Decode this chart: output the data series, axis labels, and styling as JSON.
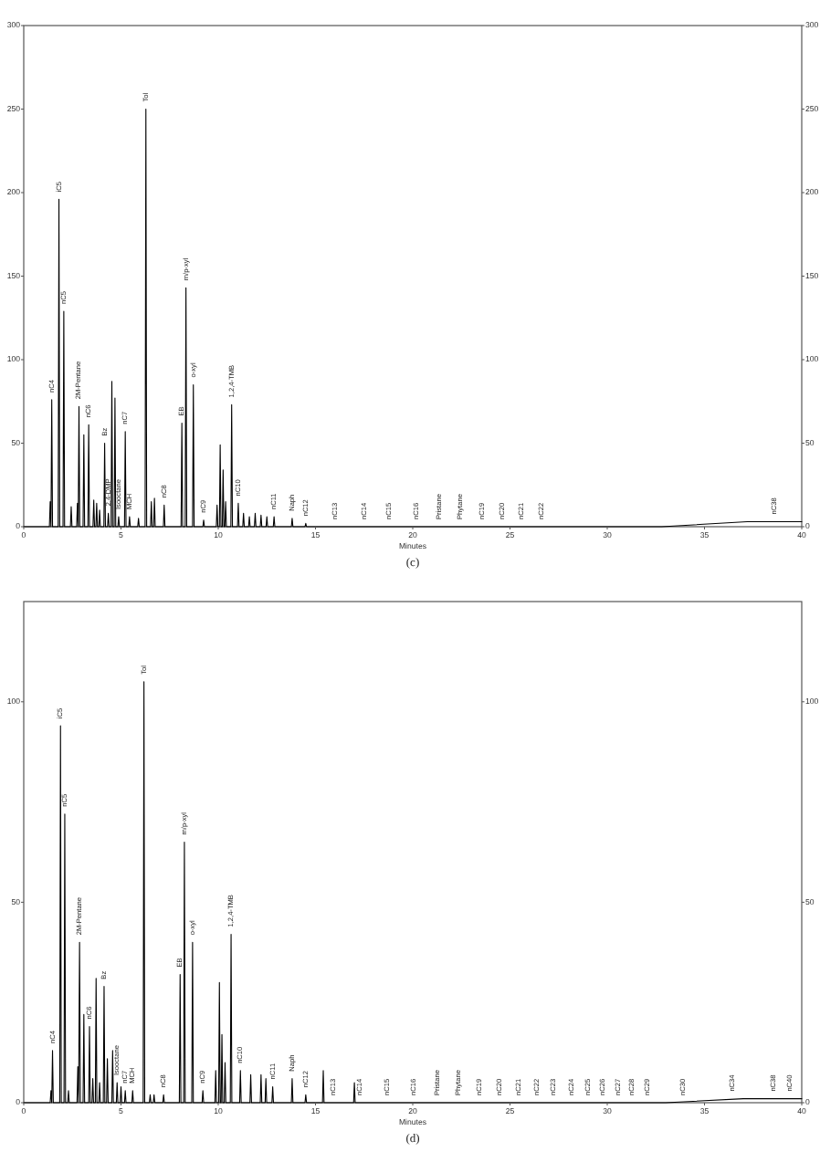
{
  "chart_data": [
    {
      "type": "line",
      "xlabel": "Minutes",
      "xlim": [
        0,
        40
      ],
      "xticks": [
        0,
        5,
        10,
        15,
        20,
        25,
        30,
        35,
        40
      ],
      "ylim": [
        0,
        300
      ],
      "yticks": [
        0,
        50,
        100,
        150,
        200,
        250,
        300
      ],
      "y2lim": [
        0,
        300
      ],
      "y2ticks": [
        0,
        50,
        100,
        150,
        200,
        250,
        300
      ],
      "series": [
        {
          "color": "#000000",
          "x": [
            0,
            1.32,
            1.36,
            1.4,
            1.44,
            1.48,
            1.77,
            1.81,
            1.85,
            2.02,
            2.06,
            2.1,
            2.4,
            2.44,
            2.48,
            2.72,
            2.76,
            2.8,
            2.84,
            2.88,
            3.05,
            3.09,
            3.13,
            3.3,
            3.34,
            3.38,
            3.56,
            3.6,
            3.64,
            3.71,
            3.75,
            3.79,
            3.86,
            3.9,
            3.94,
            4.12,
            4.16,
            4.2,
            4.31,
            4.35,
            4.39,
            4.49,
            4.53,
            4.57,
            4.65,
            4.69,
            4.73,
            4.84,
            4.88,
            4.92,
            5.18,
            5.22,
            5.26,
            5.4,
            5.44,
            5.48,
            5.86,
            5.9,
            5.94,
            6.24,
            6.28,
            6.32,
            6.52,
            6.56,
            6.6,
            6.68,
            6.72,
            6.76,
            7.18,
            7.22,
            7.26,
            8.09,
            8.13,
            8.17,
            8.3,
            8.34,
            8.38,
            8.68,
            8.72,
            8.76,
            9.21,
            9.25,
            9.29,
            9.9,
            9.94,
            9.98,
            10.06,
            10.1,
            10.14,
            10.21,
            10.25,
            10.29,
            10.34,
            10.38,
            10.42,
            10.65,
            10.69,
            10.73,
            10.99,
            11.03,
            11.07,
            11.26,
            11.3,
            11.34,
            11.56,
            11.6,
            11.64,
            11.86,
            11.9,
            11.94,
            12.16,
            12.2,
            12.24,
            12.46,
            12.5,
            12.54,
            12.83,
            12.87,
            12.91,
            13.76,
            13.8,
            13.84,
            14.46,
            14.5,
            14.54,
            32.8,
            37.2,
            40
          ],
          "values": [
            0,
            0,
            15,
            0,
            76,
            0,
            0,
            196,
            0,
            0,
            129,
            0,
            0,
            12,
            0,
            0,
            14,
            0,
            72,
            0,
            0,
            55,
            0,
            0,
            61,
            0,
            0,
            16,
            0,
            0,
            14,
            0,
            0,
            10,
            0,
            0,
            50,
            0,
            0,
            8,
            0,
            0,
            87,
            0,
            0,
            77,
            0,
            0,
            6,
            0,
            0,
            57,
            0,
            0,
            6,
            0,
            0,
            5,
            0,
            0,
            250,
            0,
            0,
            15,
            0,
            0,
            17,
            0,
            0,
            13,
            0,
            0,
            62,
            0,
            0,
            143,
            0,
            0,
            85,
            0,
            0,
            4,
            0,
            0,
            13,
            0,
            0,
            49,
            0,
            0,
            34,
            0,
            0,
            15,
            0,
            0,
            73,
            0,
            0,
            14,
            0,
            0,
            8,
            0,
            0,
            6,
            0,
            0,
            8,
            0,
            0,
            7,
            0,
            0,
            6,
            0,
            0,
            6,
            0,
            0,
            5,
            0,
            0,
            2,
            0,
            0,
            3,
            3
          ]
        }
      ],
      "annotations": [
        {
          "text": "nC4",
          "x": 1.44,
          "y": 76
        },
        {
          "text": "iC5",
          "x": 1.81,
          "y": 196
        },
        {
          "text": "nC5",
          "x": 2.06,
          "y": 129
        },
        {
          "text": "2M-Pentane",
          "x": 2.84,
          "y": 72
        },
        {
          "text": "nC6",
          "x": 3.34,
          "y": 61
        },
        {
          "text": "Bz",
          "x": 4.16,
          "y": 50
        },
        {
          "text": "2,4-DMP",
          "x": 4.35,
          "y": 8
        },
        {
          "text": "Isooctane",
          "x": 4.88,
          "y": 6
        },
        {
          "text": "nC7",
          "x": 5.22,
          "y": 57
        },
        {
          "text": "MCH",
          "x": 5.44,
          "y": 6
        },
        {
          "text": "Tol",
          "x": 6.28,
          "y": 250
        },
        {
          "text": "nC8",
          "x": 7.22,
          "y": 13
        },
        {
          "text": "EB",
          "x": 8.13,
          "y": 62
        },
        {
          "text": "m/p-xyl",
          "x": 8.34,
          "y": 143
        },
        {
          "text": "o-xyl",
          "x": 8.72,
          "y": 85
        },
        {
          "text": "nC9",
          "x": 9.25,
          "y": 4
        },
        {
          "text": "1,2,4-TMB",
          "x": 10.69,
          "y": 73
        },
        {
          "text": "nC10",
          "x": 11.03,
          "y": 14
        },
        {
          "text": "nC11",
          "x": 12.87,
          "y": 6
        },
        {
          "text": "Naph",
          "x": 13.8,
          "y": 5
        },
        {
          "text": "nC12",
          "x": 14.5,
          "y": 2
        },
        {
          "text": "nC13",
          "x": 16,
          "y": 0
        },
        {
          "text": "nC14",
          "x": 17.5,
          "y": 0
        },
        {
          "text": "nC15",
          "x": 18.8,
          "y": 0
        },
        {
          "text": "nC16",
          "x": 20.2,
          "y": 0
        },
        {
          "text": "Pristane",
          "x": 21.35,
          "y": 0
        },
        {
          "text": "Phytane",
          "x": 22.45,
          "y": 0
        },
        {
          "text": "nC19",
          "x": 23.55,
          "y": 0
        },
        {
          "text": "nC20",
          "x": 24.6,
          "y": 0
        },
        {
          "text": "nC21",
          "x": 25.6,
          "y": 0
        },
        {
          "text": "nC22",
          "x": 26.6,
          "y": 0
        },
        {
          "text": "nC38",
          "x": 38.6,
          "y": 3
        },
        "(c)"
      ]
    },
    {
      "type": "line",
      "xlabel": "Minutes",
      "xlim": [
        0,
        40
      ],
      "xticks": [
        0,
        5,
        10,
        15,
        20,
        25,
        30,
        35,
        40
      ],
      "ylim": [
        0,
        125
      ],
      "yticks": [
        0,
        50,
        100
      ],
      "y2lim": [
        0,
        125
      ],
      "y2ticks": [
        0,
        50,
        100
      ],
      "series": [
        {
          "color": "#000000",
          "x": [
            0,
            1.36,
            1.4,
            1.44,
            1.48,
            1.52,
            1.85,
            1.89,
            1.93,
            2.07,
            2.11,
            2.15,
            2.26,
            2.3,
            2.34,
            2.74,
            2.78,
            2.82,
            2.87,
            2.91,
            3.05,
            3.09,
            3.13,
            3.34,
            3.38,
            3.42,
            3.51,
            3.55,
            3.59,
            3.68,
            3.72,
            3.76,
            3.86,
            3.9,
            3.94,
            4.09,
            4.13,
            4.17,
            4.26,
            4.3,
            4.34,
            4.53,
            4.57,
            4.61,
            4.76,
            4.8,
            4.84,
            4.96,
            5,
            5.04,
            5.18,
            5.22,
            5.26,
            5.56,
            5.6,
            5.64,
            6.14,
            6.18,
            6.22,
            6.46,
            6.5,
            6.54,
            6.66,
            6.7,
            6.74,
            7.15,
            7.19,
            7.23,
            8,
            8.04,
            8.08,
            8.22,
            8.26,
            8.3,
            8.64,
            8.68,
            8.72,
            9.17,
            9.21,
            9.25,
            9.83,
            9.87,
            9.91,
            10.02,
            10.06,
            10.1,
            10.15,
            10.19,
            10.23,
            10.31,
            10.35,
            10.39,
            10.62,
            10.66,
            10.7,
            11.1,
            11.14,
            11.18,
            11.63,
            11.67,
            11.71,
            12.16,
            12.2,
            12.24,
            12.41,
            12.45,
            12.49,
            12.76,
            12.8,
            12.84,
            13.76,
            13.8,
            13.84,
            14.46,
            14.5,
            14.54,
            15.36,
            15.4,
            15.44,
            16.96,
            17,
            17.04,
            33,
            37,
            40
          ],
          "values": [
            0,
            0,
            3,
            0,
            13,
            0,
            0,
            94,
            0,
            0,
            72,
            0,
            0,
            3,
            0,
            0,
            9,
            0,
            40,
            0,
            0,
            22,
            0,
            0,
            19,
            0,
            0,
            6,
            0,
            0,
            31,
            0,
            0,
            5,
            0,
            0,
            29,
            0,
            0,
            11,
            0,
            0,
            13,
            0,
            0,
            5,
            0,
            0,
            4,
            0,
            0,
            3,
            0,
            0,
            3,
            0,
            0,
            105,
            0,
            0,
            2,
            0,
            0,
            2,
            0,
            0,
            2,
            0,
            0,
            32,
            0,
            0,
            65,
            0,
            0,
            40,
            0,
            0,
            3,
            0,
            0,
            8,
            0,
            0,
            30,
            0,
            0,
            17,
            0,
            0,
            10,
            0,
            0,
            42,
            0,
            0,
            8,
            0,
            0,
            7,
            0,
            0,
            7,
            0,
            0,
            6,
            0,
            0,
            4,
            0,
            0,
            6,
            0,
            0,
            2,
            0,
            0,
            8,
            0,
            0,
            5,
            0,
            0,
            1,
            1
          ]
        }
      ],
      "annotations": [
        {
          "text": "nC4",
          "x": 1.48,
          "y": 13
        },
        {
          "text": "iC5",
          "x": 1.89,
          "y": 94
        },
        {
          "text": "nC5",
          "x": 2.11,
          "y": 72
        },
        {
          "text": "2M-Pentane",
          "x": 2.87,
          "y": 40
        },
        {
          "text": "nC6",
          "x": 3.38,
          "y": 19
        },
        {
          "text": "Bz",
          "x": 4.13,
          "y": 29
        },
        {
          "text": "Isooctane",
          "x": 4.8,
          "y": 5
        },
        {
          "text": "nC7",
          "x": 5.22,
          "y": 3
        },
        {
          "text": "MCH",
          "x": 5.6,
          "y": 3
        },
        {
          "text": "Tol",
          "x": 6.18,
          "y": 105
        },
        {
          "text": "nC8",
          "x": 7.19,
          "y": 2
        },
        {
          "text": "EB",
          "x": 8.04,
          "y": 32
        },
        {
          "text": "m/p-xyl",
          "x": 8.26,
          "y": 65
        },
        {
          "text": "o-xyl",
          "x": 8.68,
          "y": 40
        },
        {
          "text": "nC9",
          "x": 9.21,
          "y": 3
        },
        {
          "text": "1,2,4-TMB",
          "x": 10.66,
          "y": 42
        },
        {
          "text": "nC10",
          "x": 11.14,
          "y": 8
        },
        {
          "text": "nC11",
          "x": 12.8,
          "y": 4
        },
        {
          "text": "Naph",
          "x": 13.8,
          "y": 6
        },
        {
          "text": "nC12",
          "x": 14.5,
          "y": 2
        },
        {
          "text": "nC13",
          "x": 15.9,
          "y": 0
        },
        {
          "text": "nC14",
          "x": 17.3,
          "y": 0
        },
        {
          "text": "nC15",
          "x": 18.7,
          "y": 0
        },
        {
          "text": "nC16",
          "x": 20.05,
          "y": 0
        },
        {
          "text": "Pristane",
          "x": 21.25,
          "y": 0
        },
        {
          "text": "Phytane",
          "x": 22.35,
          "y": 0
        },
        {
          "text": "nC19",
          "x": 23.45,
          "y": 0
        },
        {
          "text": "nC20",
          "x": 24.45,
          "y": 0
        },
        {
          "text": "nC21",
          "x": 25.45,
          "y": 0
        },
        {
          "text": "nC22",
          "x": 26.4,
          "y": 0
        },
        {
          "text": "nC23",
          "x": 27.25,
          "y": 0
        },
        {
          "text": "nC24",
          "x": 28.15,
          "y": 0
        },
        {
          "text": "nC25",
          "x": 29,
          "y": 0
        },
        {
          "text": "nC26",
          "x": 29.75,
          "y": 0
        },
        {
          "text": "nC27",
          "x": 30.55,
          "y": 0
        },
        {
          "text": "nC28",
          "x": 31.25,
          "y": 0
        },
        {
          "text": "nC29",
          "x": 32.05,
          "y": 0
        },
        {
          "text": "nC30",
          "x": 33.9,
          "y": 0
        },
        {
          "text": "nC34",
          "x": 36.45,
          "y": 1
        },
        {
          "text": "nC38",
          "x": 38.55,
          "y": 1
        },
        {
          "text": "nC40",
          "x": 39.4,
          "y": 1
        },
        "(d)"
      ]
    }
  ]
}
